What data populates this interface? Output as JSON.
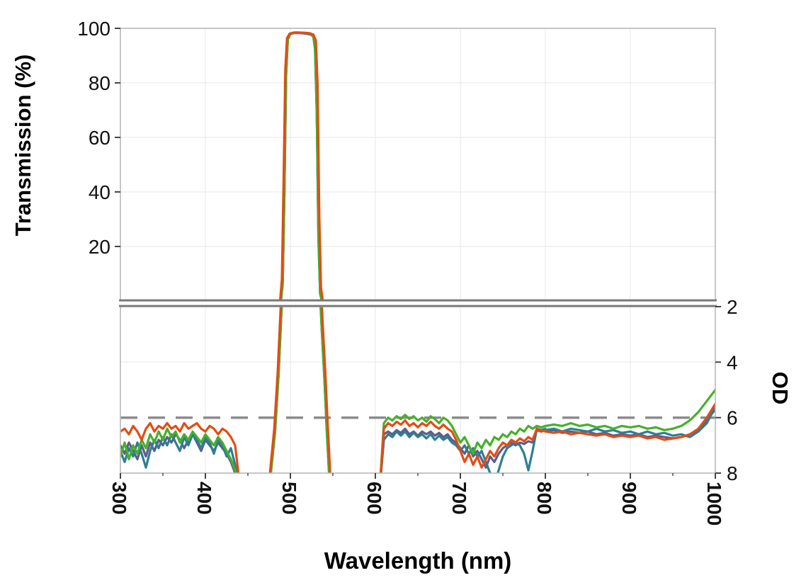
{
  "page": {
    "background": "#ffffff"
  },
  "chart_data": {
    "type": "line",
    "title": "",
    "xlabel": "Wavelength (nm)",
    "ylabel_left": "Transmission (%)",
    "ylabel_right": "OD",
    "legend": "none",
    "grid": true,
    "x_range": [
      300,
      1000
    ],
    "x_ticks": [
      300,
      400,
      500,
      600,
      700,
      800,
      900,
      1000
    ],
    "x_minor_ticks": [
      350,
      450,
      550,
      650,
      750,
      850,
      950
    ],
    "transmission_axis": {
      "range": [
        0,
        100
      ],
      "ticks": [
        20,
        40,
        60,
        80,
        100
      ]
    },
    "od_axis": {
      "range": [
        2,
        8
      ],
      "ticks": [
        2,
        4,
        6,
        8
      ],
      "inverted": true
    },
    "reference_line": {
      "od": 6,
      "style": "dashed",
      "color": "#8c8c8c"
    },
    "passband": {
      "approx_center_nm": 513,
      "approx_peak_transmission_pct": 98
    },
    "series": [
      {
        "name": "trace-1-slate",
        "color": "#5d5d8e",
        "segments": [
          {
            "x0": 300,
            "dx": 5,
            "od": [
              7.0,
              7.3,
              6.9,
              7.2,
              7.5,
              7.0,
              7.4,
              6.9,
              7.2,
              6.8,
              7.0,
              6.7,
              6.9,
              6.6,
              6.8,
              7.1,
              6.8,
              6.6,
              6.9,
              7.2,
              6.8,
              7.0,
              7.2,
              6.9,
              7.1,
              7.3,
              7.6,
              8.0,
              8.5
            ]
          },
          {
            "points": [
              [
                445,
                8.6
              ],
              [
                468,
                8.6
              ],
              [
                476,
                8.3
              ],
              [
                482,
                6.5
              ],
              [
                486,
                4.5
              ],
              [
                489,
                2.5
              ],
              [
                491,
                1.2
              ],
              [
                493,
                0.4
              ],
              [
                495,
                0.08
              ],
              [
                497,
                0.018
              ],
              [
                500,
                0.009
              ],
              [
                505,
                0.0075
              ],
              [
                510,
                0.0075
              ],
              [
                515,
                0.008
              ],
              [
                520,
                0.009
              ],
              [
                524,
                0.01
              ],
              [
                527,
                0.013
              ],
              [
                529,
                0.035
              ],
              [
                531,
                0.16
              ],
              [
                533,
                0.65
              ],
              [
                535,
                1.6
              ],
              [
                537,
                2.9
              ],
              [
                540,
                4.6
              ],
              [
                543,
                6.6
              ],
              [
                546,
                8.3
              ],
              [
                550,
                8.6
              ],
              [
                605,
                8.6
              ]
            ]
          },
          {
            "x0": 610,
            "dx": 5,
            "od": [
              6.6,
              6.5,
              6.6,
              6.45,
              6.55,
              6.4,
              6.6,
              6.5,
              6.65,
              6.5,
              6.6,
              6.5,
              6.65,
              6.55,
              6.7,
              6.6,
              6.8,
              6.9,
              7.1,
              7.3,
              7.0,
              7.4,
              7.2,
              7.5,
              7.8,
              7.4,
              7.6,
              7.3,
              7.1,
              7.0,
              6.9,
              7.0,
              6.9,
              6.95,
              6.85,
              6.9,
              6.45,
              6.5,
              6.45
            ]
          },
          {
            "x0": 800,
            "dx": 10,
            "od": [
              6.5,
              6.45,
              6.55,
              6.5,
              6.55,
              6.5,
              6.6,
              6.55,
              6.65,
              6.6,
              6.65,
              6.6,
              6.7,
              6.65,
              6.7,
              6.75,
              6.7,
              6.6,
              6.45,
              6.1,
              5.7
            ]
          }
        ]
      },
      {
        "name": "trace-2-teal",
        "color": "#2f7e92",
        "segments": [
          {
            "x0": 300,
            "dx": 5,
            "od": [
              7.2,
              7.6,
              7.1,
              7.4,
              6.9,
              7.3,
              7.8,
              7.2,
              6.8,
              7.1,
              6.7,
              7.0,
              6.6,
              6.9,
              7.2,
              6.7,
              7.0,
              6.6,
              6.8,
              7.1,
              6.7,
              6.9,
              7.3,
              6.8,
              7.0,
              7.4,
              7.1,
              7.7,
              8.4
            ]
          },
          {
            "points": [
              [
                445,
                8.6
              ],
              [
                468,
                8.6
              ],
              [
                476,
                8.3
              ],
              [
                482,
                6.4
              ],
              [
                486,
                4.4
              ],
              [
                489,
                2.4
              ],
              [
                491,
                1.1
              ],
              [
                493,
                0.38
              ],
              [
                495,
                0.075
              ],
              [
                497,
                0.016
              ],
              [
                500,
                0.0085
              ],
              [
                505,
                0.0066
              ],
              [
                510,
                0.0066
              ],
              [
                515,
                0.007
              ],
              [
                520,
                0.008
              ],
              [
                524,
                0.009
              ],
              [
                527,
                0.012
              ],
              [
                529,
                0.03
              ],
              [
                531,
                0.15
              ],
              [
                533,
                0.6
              ],
              [
                535,
                1.5
              ],
              [
                537,
                2.8
              ],
              [
                540,
                4.5
              ],
              [
                543,
                6.5
              ],
              [
                546,
                8.2
              ],
              [
                550,
                8.6
              ],
              [
                605,
                8.6
              ]
            ]
          },
          {
            "x0": 610,
            "dx": 5,
            "od": [
              6.8,
              6.6,
              6.7,
              6.5,
              6.65,
              6.5,
              6.7,
              6.55,
              6.7,
              6.6,
              6.75,
              6.6,
              6.8,
              6.65,
              6.8,
              6.7,
              6.9,
              7.0,
              7.2,
              7.0,
              7.3,
              7.1,
              7.4,
              7.2,
              7.6,
              8.0,
              8.4,
              7.9,
              7.4,
              7.1,
              7.0,
              6.9,
              7.0,
              7.3,
              7.9,
              7.2,
              6.4,
              6.45,
              6.4
            ]
          },
          {
            "x0": 800,
            "dx": 10,
            "od": [
              6.45,
              6.4,
              6.5,
              6.4,
              6.45,
              6.5,
              6.4,
              6.5,
              6.45,
              6.55,
              6.5,
              6.6,
              6.5,
              6.6,
              6.55,
              6.65,
              6.6,
              6.7,
              6.5,
              6.2,
              5.6
            ]
          }
        ]
      },
      {
        "name": "trace-3-green",
        "color": "#46b02a",
        "segments": [
          {
            "x0": 300,
            "dx": 5,
            "od": [
              7.4,
              6.9,
              7.5,
              7.0,
              7.3,
              6.8,
              7.1,
              6.6,
              6.9,
              6.5,
              6.8,
              6.4,
              6.7,
              6.5,
              6.9,
              6.6,
              6.8,
              6.5,
              6.7,
              6.9,
              6.6,
              6.8,
              7.0,
              6.7,
              6.9,
              7.2,
              7.5,
              7.9,
              8.4
            ]
          },
          {
            "points": [
              [
                445,
                8.6
              ],
              [
                468,
                8.6
              ],
              [
                476,
                8.3
              ],
              [
                482,
                6.5
              ],
              [
                486,
                4.5
              ],
              [
                489,
                2.5
              ],
              [
                491,
                1.15
              ],
              [
                493,
                0.39
              ],
              [
                495,
                0.078
              ],
              [
                497,
                0.017
              ],
              [
                500,
                0.0088
              ],
              [
                505,
                0.007
              ],
              [
                510,
                0.007
              ],
              [
                515,
                0.0072
              ],
              [
                520,
                0.008
              ],
              [
                524,
                0.009
              ],
              [
                527,
                0.012
              ],
              [
                529,
                0.032
              ],
              [
                531,
                0.15
              ],
              [
                533,
                0.62
              ],
              [
                535,
                1.55
              ],
              [
                537,
                2.85
              ],
              [
                540,
                4.55
              ],
              [
                543,
                6.55
              ],
              [
                546,
                8.25
              ],
              [
                550,
                8.6
              ],
              [
                605,
                8.6
              ]
            ]
          },
          {
            "x0": 610,
            "dx": 5,
            "od": [
              6.2,
              6.0,
              6.1,
              5.95,
              6.05,
              5.9,
              6.05,
              5.95,
              6.1,
              6.0,
              6.15,
              5.95,
              6.05,
              6.2,
              6.0,
              6.1,
              6.3,
              6.6,
              6.9,
              6.7,
              7.0,
              7.3,
              6.9,
              7.1,
              6.8,
              7.0,
              6.7,
              6.8,
              6.6,
              6.7,
              6.5,
              6.6,
              6.4,
              6.5,
              6.3,
              6.4,
              6.3,
              6.35,
              6.3
            ]
          },
          {
            "x0": 800,
            "dx": 10,
            "od": [
              6.3,
              6.25,
              6.3,
              6.2,
              6.3,
              6.25,
              6.35,
              6.3,
              6.4,
              6.3,
              6.35,
              6.3,
              6.4,
              6.35,
              6.45,
              6.4,
              6.3,
              6.1,
              5.8,
              5.4,
              5.0
            ]
          }
        ]
      },
      {
        "name": "trace-4-orange",
        "color": "#e54b12",
        "segments": [
          {
            "x0": 300,
            "dx": 5,
            "od": [
              6.5,
              6.4,
              6.6,
              6.3,
              6.5,
              6.8,
              6.4,
              6.2,
              6.5,
              6.3,
              6.4,
              6.2,
              6.4,
              6.3,
              6.5,
              6.2,
              6.4,
              6.3,
              6.2,
              6.4,
              6.5,
              6.3,
              6.4,
              6.6,
              6.4,
              6.5,
              6.7,
              7.0,
              8.3
            ]
          },
          {
            "points": [
              [
                445,
                8.6
              ],
              [
                467,
                8.6
              ],
              [
                475,
                8.3
              ],
              [
                481,
                6.4
              ],
              [
                485,
                4.4
              ],
              [
                488,
                2.4
              ],
              [
                490,
                1.1
              ],
              [
                492,
                0.36
              ],
              [
                494,
                0.072
              ],
              [
                496,
                0.016
              ],
              [
                499,
                0.0085
              ],
              [
                503,
                0.007
              ],
              [
                508,
                0.0068
              ],
              [
                513,
                0.007
              ],
              [
                518,
                0.0072
              ],
              [
                523,
                0.008
              ],
              [
                527,
                0.01
              ],
              [
                530,
                0.02
              ],
              [
                532,
                0.1
              ],
              [
                534,
                0.5
              ],
              [
                536,
                1.3
              ],
              [
                538,
                2.6
              ],
              [
                541,
                4.3
              ],
              [
                544,
                6.3
              ],
              [
                547,
                8.1
              ],
              [
                551,
                8.6
              ],
              [
                605,
                8.6
              ]
            ]
          },
          {
            "x0": 610,
            "dx": 5,
            "od": [
              6.4,
              6.2,
              6.3,
              6.15,
              6.25,
              6.1,
              6.3,
              6.2,
              6.35,
              6.2,
              6.3,
              6.15,
              6.3,
              6.4,
              6.25,
              6.4,
              6.5,
              6.8,
              7.2,
              7.6,
              7.3,
              7.7,
              7.4,
              7.8,
              7.5,
              7.2,
              7.4,
              7.1,
              6.9,
              7.0,
              6.8,
              6.9,
              6.75,
              6.85,
              6.7,
              6.8,
              6.4,
              6.5,
              6.45
            ]
          },
          {
            "x0": 800,
            "dx": 10,
            "od": [
              6.5,
              6.55,
              6.5,
              6.6,
              6.55,
              6.6,
              6.65,
              6.6,
              6.7,
              6.65,
              6.7,
              6.65,
              6.75,
              6.7,
              6.8,
              6.75,
              6.7,
              6.6,
              6.4,
              6.0,
              5.5
            ]
          }
        ]
      }
    ]
  }
}
